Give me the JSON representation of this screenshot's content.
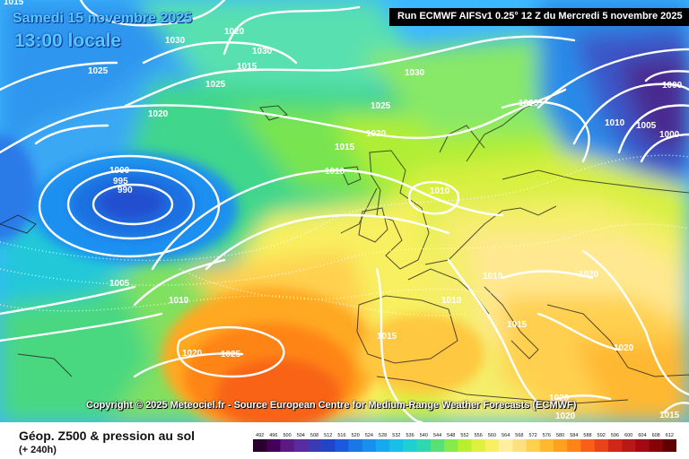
{
  "header": {
    "date_label": "Samedi 15 novembre 2025",
    "time_label": "13:00 locale",
    "run_label": "Run ECMWF AIFSv1 0.25° 12 Z du Mercredi 5 novembre 2025"
  },
  "copyright": "Copyright © 2025 Meteociel.fr - Source European Centre for Medium-Range Weather Forecasts (ECMWF)",
  "footer": {
    "title": "Géop. Z500 & pression au sol",
    "subtitle": "(+ 240h)"
  },
  "isobar_labels": [
    "1015",
    "1030",
    "1020",
    "1030",
    "1025",
    "1025",
    "1015",
    "1030",
    "1025",
    "1020",
    "1020",
    "1015",
    "1010",
    "1000",
    "995",
    "990",
    "1010",
    "1000",
    "1005",
    "1010",
    "1000",
    "1005",
    "1020",
    "1010",
    "1010",
    "1020",
    "1015",
    "1015",
    "1010",
    "1020",
    "1025",
    "1020",
    "1020",
    "1020",
    "1015"
  ],
  "color_scale": {
    "labels": [
      "492",
      "496",
      "500",
      "504",
      "508",
      "512",
      "516",
      "520",
      "524",
      "528",
      "532",
      "536",
      "540",
      "544",
      "548",
      "552",
      "556",
      "560",
      "564",
      "568",
      "572",
      "576",
      "580",
      "584",
      "588",
      "592",
      "596",
      "600",
      "604",
      "608",
      "612"
    ],
    "colors": [
      "#2a0030",
      "#440058",
      "#5a1a80",
      "#5a2aa0",
      "#3a3ab4",
      "#2244c8",
      "#1a5ade",
      "#1878e8",
      "#1890f0",
      "#18a8f0",
      "#18c0e8",
      "#20d0d0",
      "#30d8b0",
      "#58e078",
      "#88ea48",
      "#b8f030",
      "#e0f040",
      "#f8f060",
      "#fff0a0",
      "#ffe080",
      "#ffd050",
      "#ffb830",
      "#ffa020",
      "#ff8418",
      "#f86018",
      "#e84418",
      "#d02818",
      "#b81818",
      "#a00a10",
      "#880008",
      "#600005"
    ]
  },
  "legend_colors": {
    "header_text": "#54c8ff",
    "isobar": "#ffffff"
  }
}
